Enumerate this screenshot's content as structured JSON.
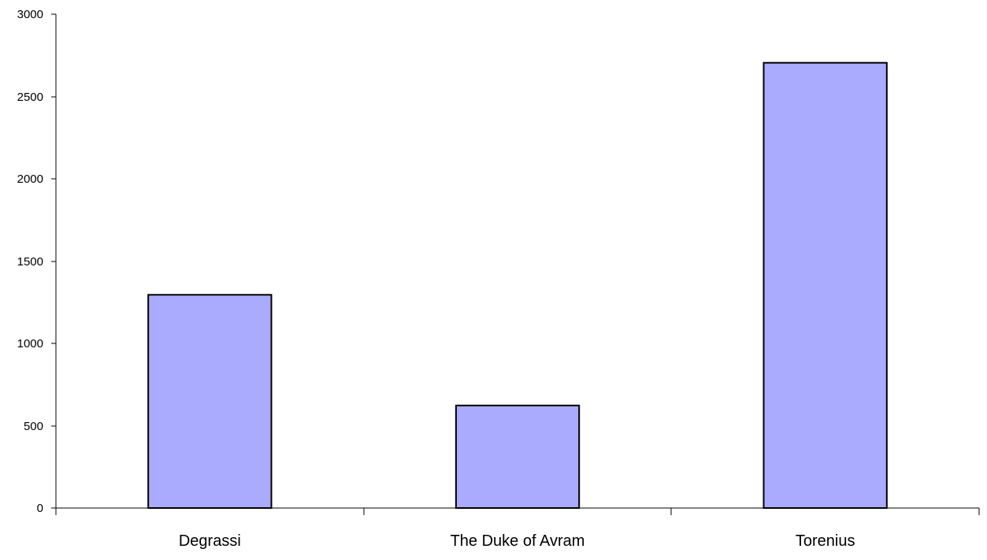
{
  "chart_data": {
    "type": "bar",
    "title": "",
    "xlabel": "",
    "ylabel": "",
    "categories": [
      "Degrassi",
      "The Duke of Avram",
      "Torenius"
    ],
    "values": [
      1295,
      623,
      2705
    ],
    "ylim": [
      0,
      3000
    ],
    "yticks": [
      "0",
      "500",
      "1000",
      "1500",
      "2000",
      "2500",
      "3000"
    ],
    "grid": false,
    "legend": "none",
    "colors": {
      "bar_fill": "#aaaaff",
      "bar_stroke": "#000000",
      "axis": "#000000"
    }
  }
}
